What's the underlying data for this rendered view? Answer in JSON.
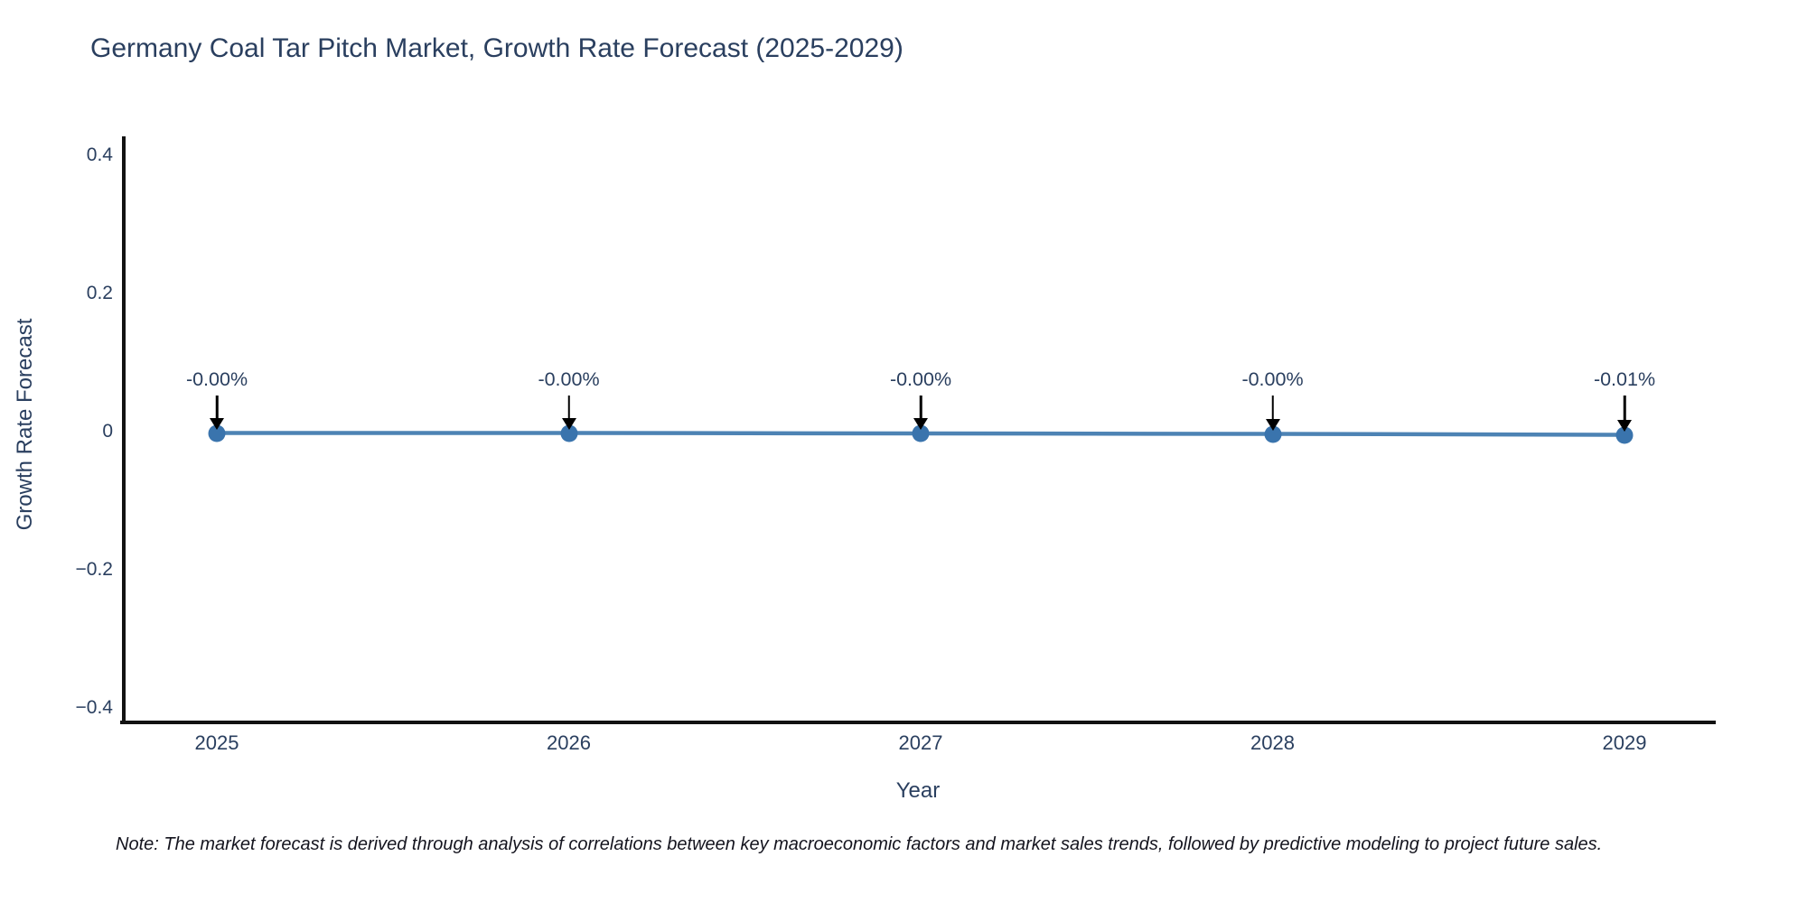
{
  "chart_data": {
    "type": "line",
    "title": "Germany Coal Tar Pitch Market, Growth Rate Forecast (2025-2029)",
    "xlabel": "Year",
    "ylabel": "Growth Rate Forecast",
    "x": [
      "2025",
      "2026",
      "2027",
      "2028",
      "2029"
    ],
    "series": [
      {
        "name": "Growth Rate Forecast",
        "values": [
          -0.0,
          -0.0,
          -0.0,
          -0.0,
          -0.01
        ]
      }
    ],
    "point_labels": [
      "-0.00%",
      "-0.00%",
      "-0.00%",
      "-0.00%",
      "-0.01%"
    ],
    "ytick_labels": [
      "0.4",
      "0.2",
      "0",
      "−0.2",
      "−0.4"
    ],
    "ytick_values": [
      0.4,
      0.2,
      0,
      -0.2,
      -0.4
    ],
    "ylim": [
      -0.43,
      0.43
    ],
    "grid": false,
    "legend_position": "none",
    "marker_style": "circle-with-down-arrow-annotation",
    "colors": {
      "line": "#4d83b4",
      "marker": "#3a74ad",
      "axis_line": "#121212",
      "text": "#2a3f5f",
      "arrow": "#000000"
    },
    "note": "Note: The market forecast is derived through analysis of correlations between key macroeconomic factors and market sales trends, followed by predictive modeling to project future sales."
  }
}
